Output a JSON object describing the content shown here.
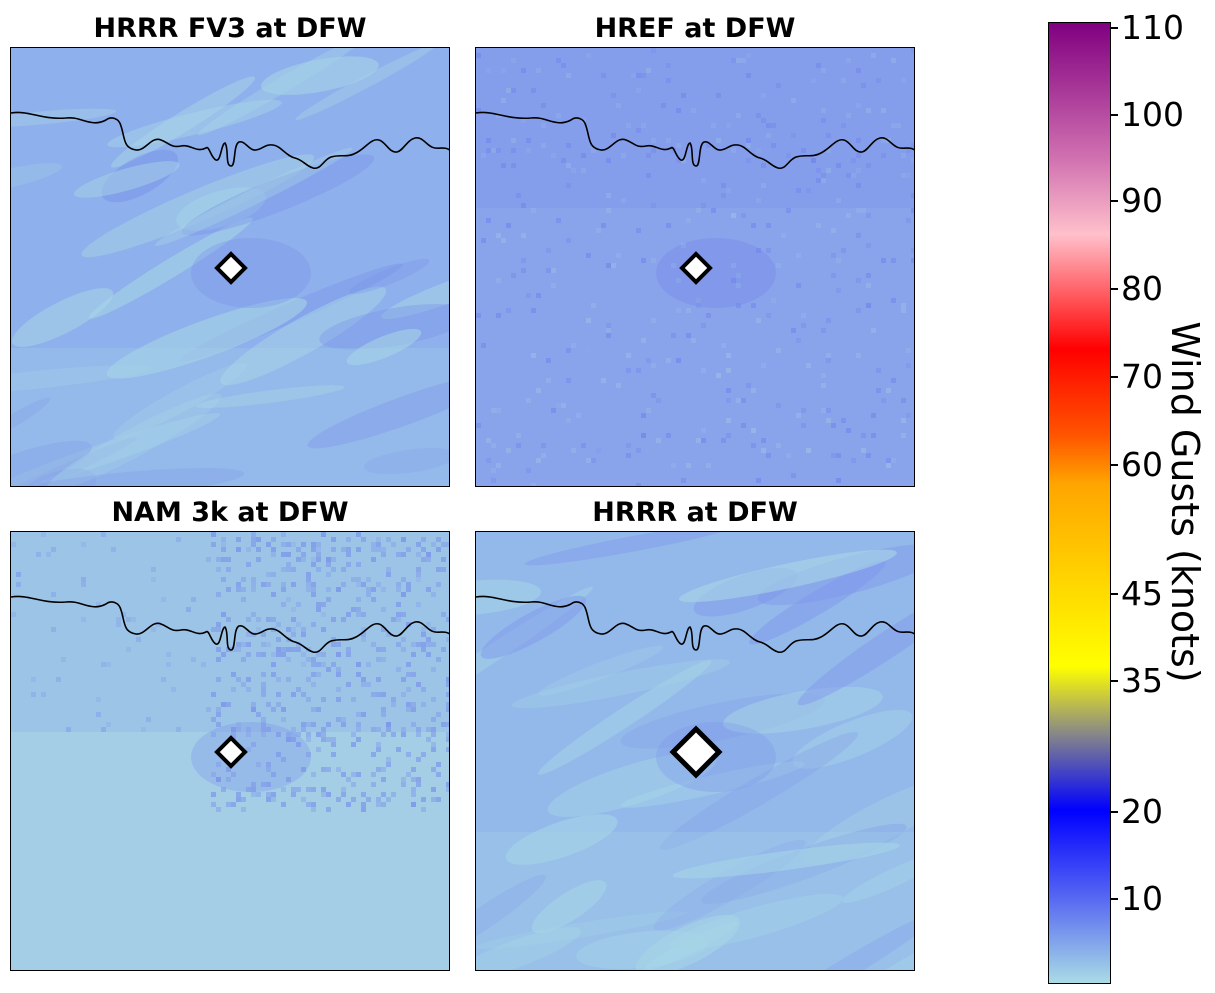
{
  "panels": [
    {
      "id": "hrrr-fv3",
      "title": "HRRR FV3 at DFW",
      "base": "#8eb0ec",
      "light": "#a7d5e6",
      "dark": "#7a93ea",
      "pattern": "streaky"
    },
    {
      "id": "href",
      "title": "HREF at DFW",
      "base": "#8aa4ec",
      "light": "#99bbe8",
      "dark": "#7487ea",
      "pattern": "speckled"
    },
    {
      "id": "nam-3k",
      "title": "NAM 3k at DFW",
      "base": "#9cc4e7",
      "light": "#a9d8e5",
      "dark": "#7e98ea",
      "pattern": "patchy"
    },
    {
      "id": "hrrr",
      "title": "HRRR at DFW",
      "base": "#93b9ea",
      "light": "#a8d6e6",
      "dark": "#7f97ec",
      "pattern": "streaky"
    }
  ],
  "colorbar": {
    "label": "Wind Gusts (knots)",
    "ticks": [
      "110",
      "100",
      "90",
      "80",
      "70",
      "60",
      "45",
      "35",
      "20",
      "10"
    ],
    "tick_values": [
      110,
      100,
      90,
      80,
      70,
      60,
      45,
      35,
      20,
      10
    ],
    "stops": [
      "#a9dbe5",
      "#5566f2",
      "#0000ff",
      "#888888",
      "#ffff00",
      "#ffa500",
      "#ff5500",
      "#ff0000",
      "#ffc0cb",
      "#d070b0",
      "#800080"
    ]
  },
  "marker": {
    "symbol": "diamond",
    "fill": "#ffffff",
    "stroke": "#000000"
  }
}
